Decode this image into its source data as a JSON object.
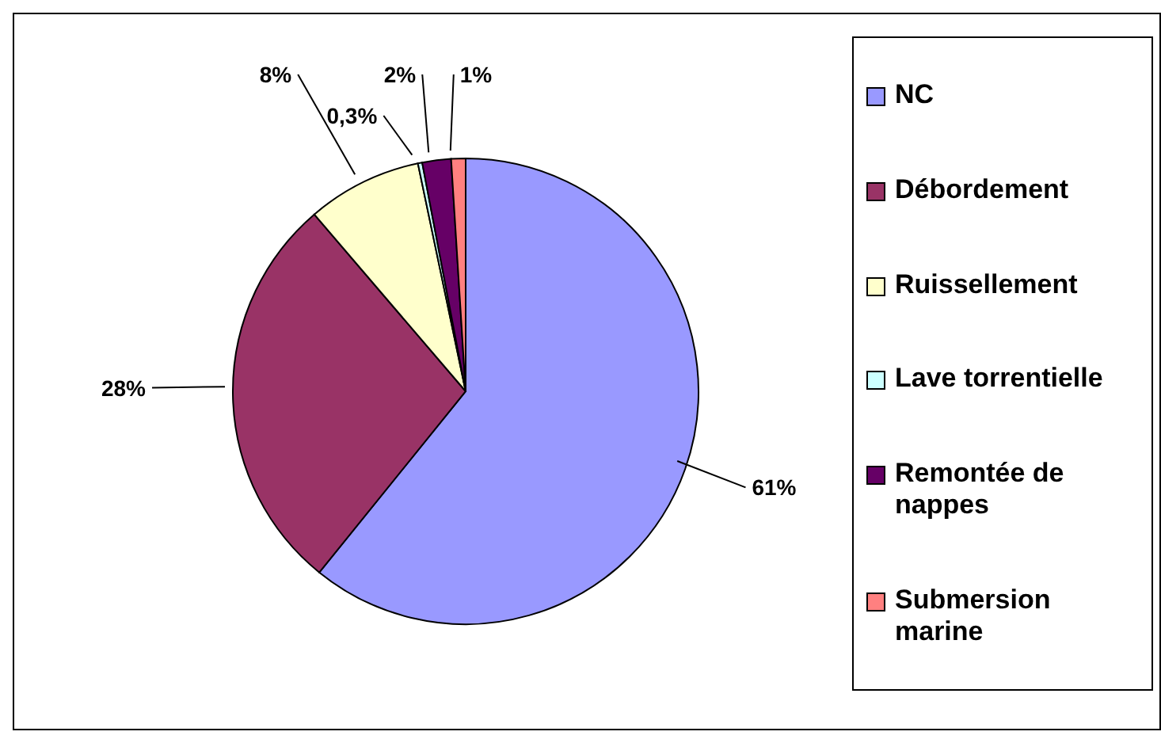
{
  "chart_data": {
    "type": "pie",
    "categories": [
      "NC",
      "Débordement",
      "Ruissellement",
      "Lave torrentielle",
      "Remontée de nappes",
      "Submersion marine"
    ],
    "values": [
      61,
      28,
      8,
      0.3,
      2,
      1
    ],
    "value_labels": [
      "61%",
      "28%",
      "8%",
      "0,3%",
      "2%",
      "1%"
    ],
    "colors": [
      "#9999ff",
      "#993366",
      "#ffffcc",
      "#ccffff",
      "#660066",
      "#ff8080"
    ],
    "legend": "right"
  }
}
